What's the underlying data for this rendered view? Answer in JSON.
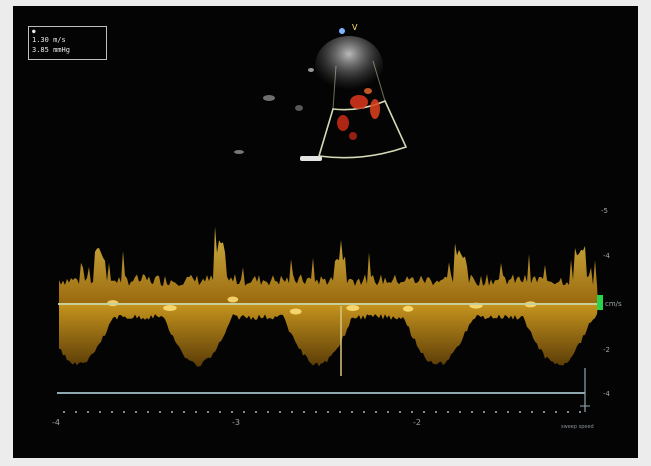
{
  "image": {
    "subject": "echocardiogram-doppler-ultrasound",
    "colors": {
      "background": "#040404",
      "doppler_spectrum": "#e3a81b",
      "doppler_highlight": "#ffe27a",
      "color_flow": "#d3341c",
      "baseline": "#c8cf9c",
      "sector_outline": "#d7d9b6",
      "scale_marker": "#2bd24a"
    }
  },
  "calibration": {
    "row1": "1.30 m/s",
    "row2": "3.85 mmHg"
  },
  "sector": {
    "marker": "V"
  },
  "scale": {
    "labels": [
      "-5",
      "-4",
      "-4",
      "-2",
      "-4"
    ],
    "baseline_unit": "cm/s"
  },
  "time_axis": {
    "labels": [
      "-4",
      "-3",
      "-2"
    ],
    "sweep_speed": "sweep speed"
  }
}
